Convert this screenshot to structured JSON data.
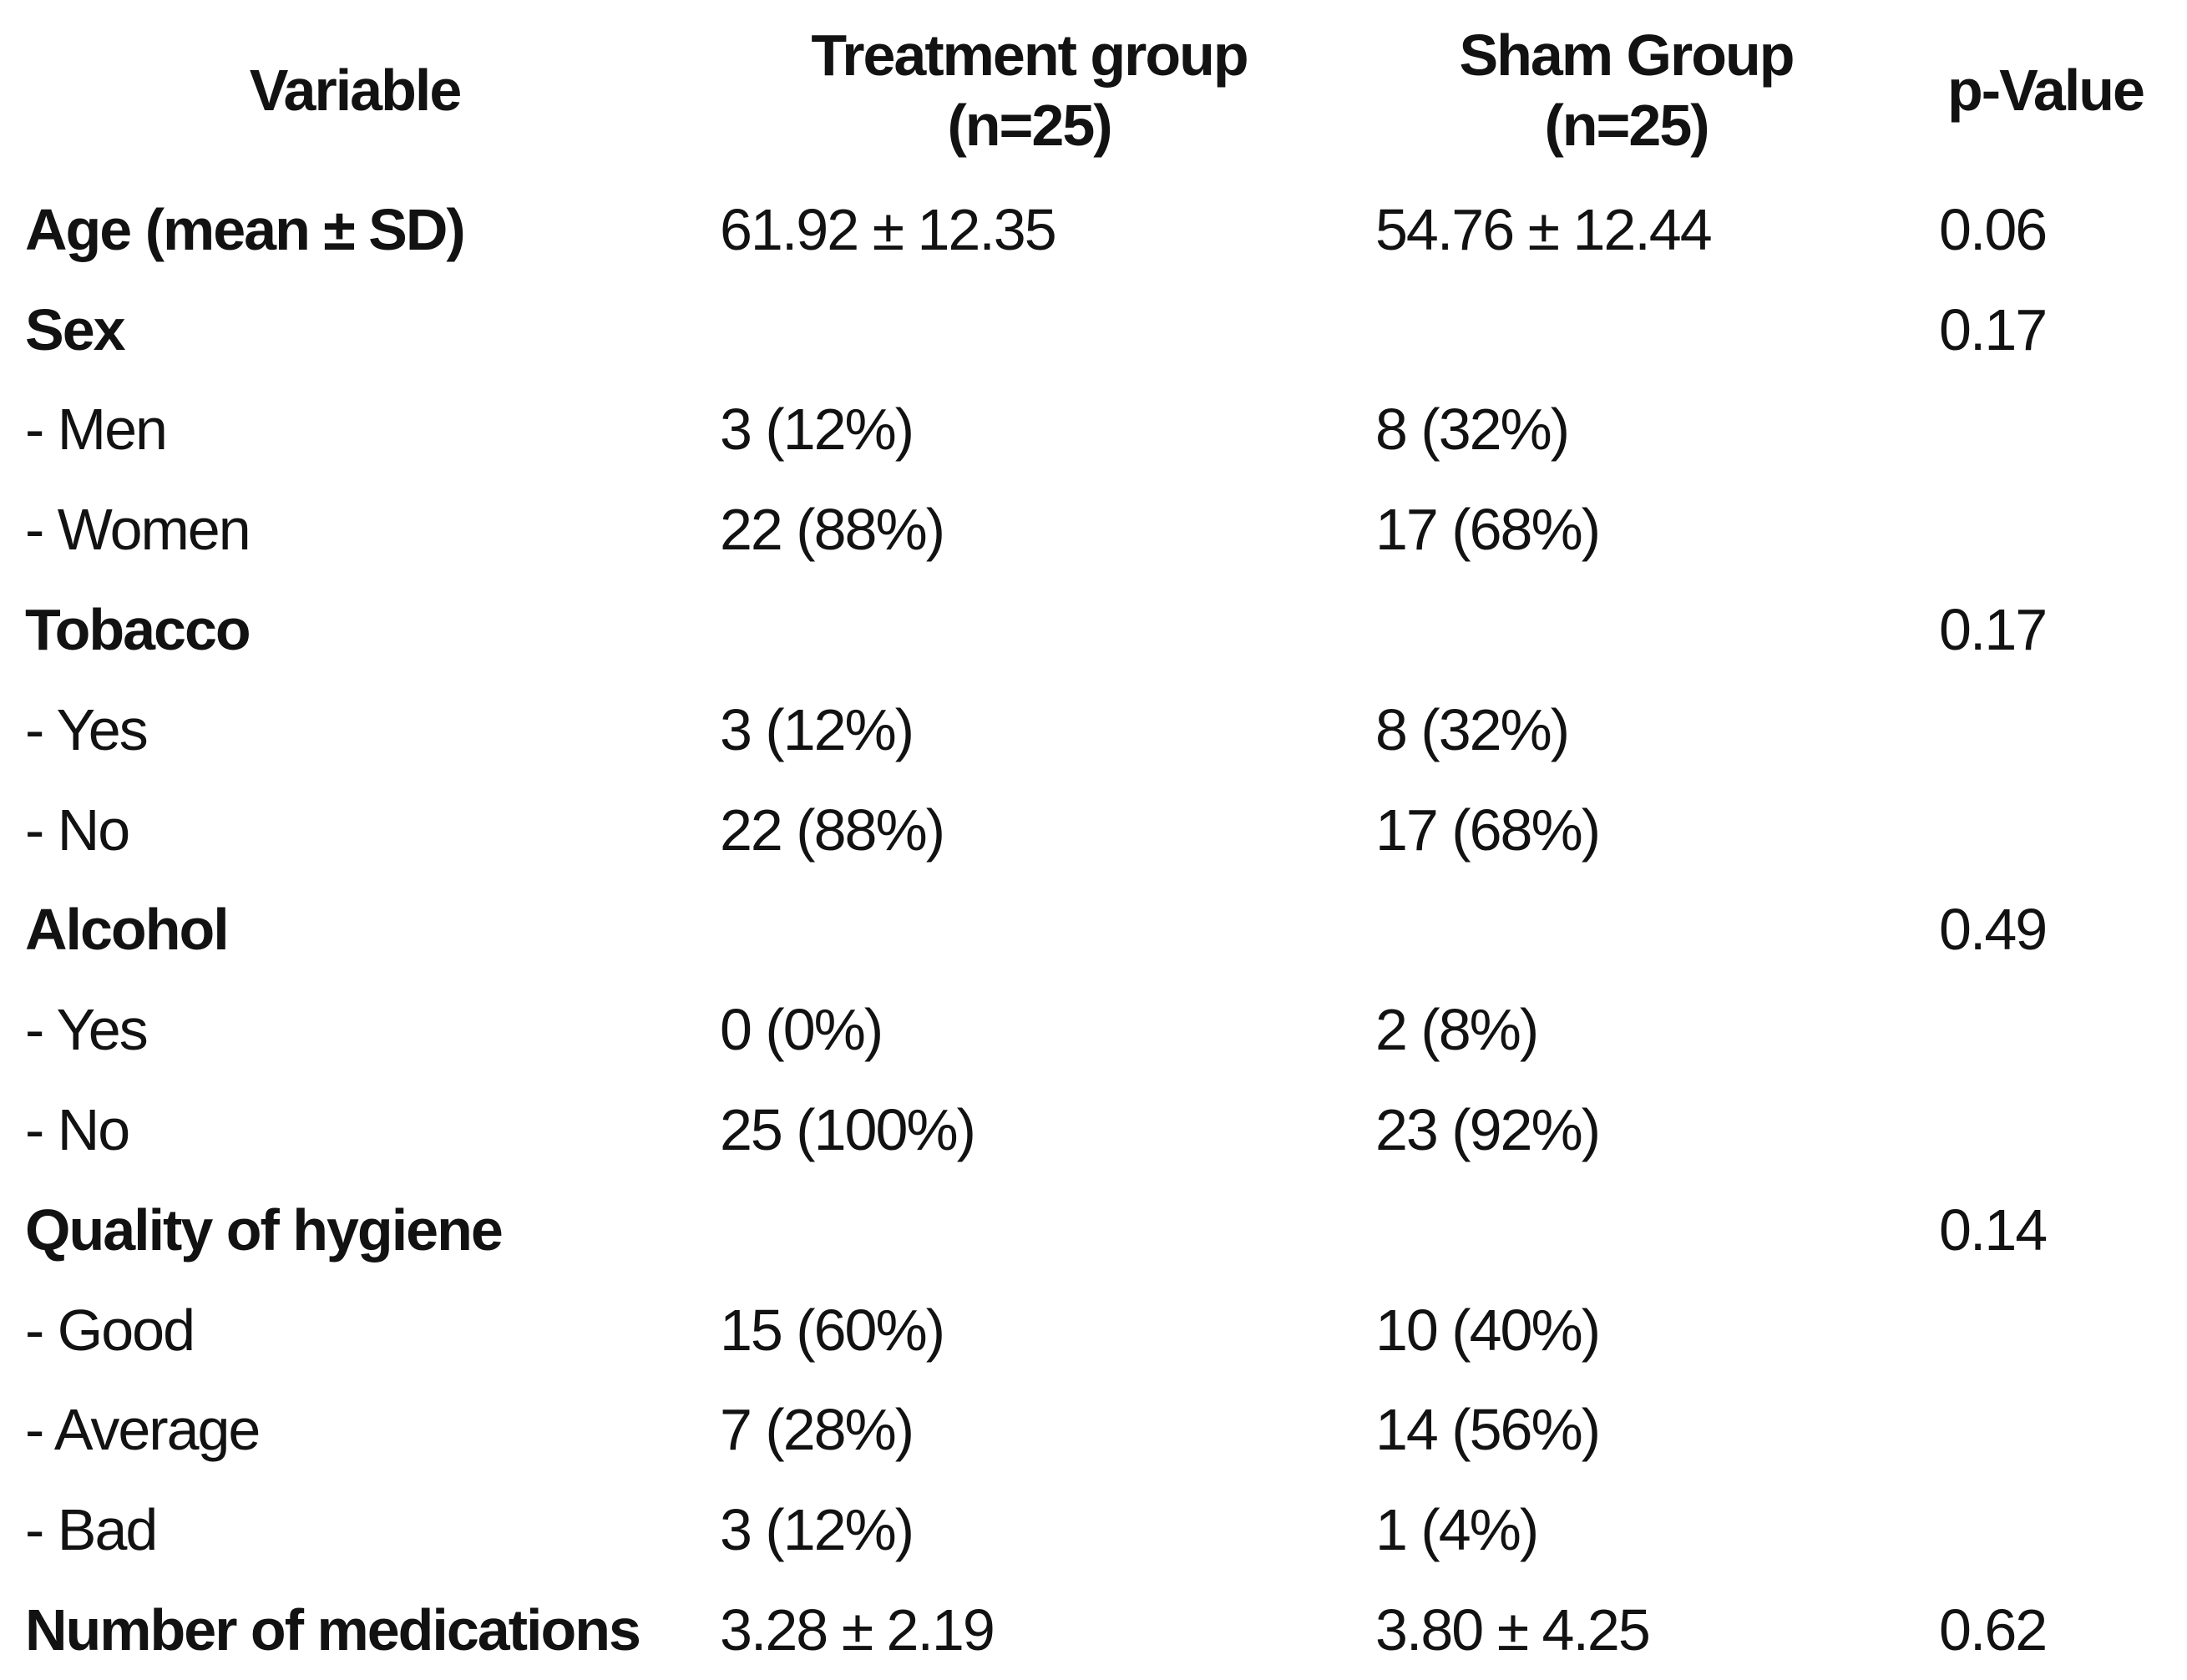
{
  "table": {
    "columns": [
      {
        "label": "Variable",
        "sublabel": ""
      },
      {
        "label": "Treatment group",
        "sublabel": "(n=25)"
      },
      {
        "label": "Sham Group",
        "sublabel": "(n=25)"
      },
      {
        "label": "p-Value",
        "sublabel": ""
      }
    ],
    "rows": [
      {
        "variable": "Age (mean ± SD)",
        "bold": true,
        "treatment": "61.92 ± 12.35",
        "sham": "54.76 ± 12.44",
        "p": "0.06"
      },
      {
        "variable": "Sex",
        "bold": true,
        "treatment": "",
        "sham": "",
        "p": "0.17"
      },
      {
        "variable": "- Men",
        "bold": false,
        "treatment": "3 (12%)",
        "sham": "8 (32%)",
        "p": ""
      },
      {
        "variable": "- Women",
        "bold": false,
        "treatment": "22 (88%)",
        "sham": "17 (68%)",
        "p": ""
      },
      {
        "variable": "Tobacco",
        "bold": true,
        "treatment": "",
        "sham": "",
        "p": "0.17"
      },
      {
        "variable": "- Yes",
        "bold": false,
        "treatment": "3 (12%)",
        "sham": "8 (32%)",
        "p": ""
      },
      {
        "variable": "- No",
        "bold": false,
        "treatment": "22 (88%)",
        "sham": "17 (68%)",
        "p": ""
      },
      {
        "variable": "Alcohol",
        "bold": true,
        "treatment": "",
        "sham": "",
        "p": "0.49"
      },
      {
        "variable": "- Yes",
        "bold": false,
        "treatment": "0 (0%)",
        "sham": "2 (8%)",
        "p": ""
      },
      {
        "variable": "- No",
        "bold": false,
        "treatment": "25 (100%)",
        "sham": "23 (92%)",
        "p": ""
      },
      {
        "variable": "Quality of hygiene",
        "bold": true,
        "treatment": "",
        "sham": "",
        "p": "0.14"
      },
      {
        "variable": "- Good",
        "bold": false,
        "treatment": "15 (60%)",
        "sham": "10 (40%)",
        "p": ""
      },
      {
        "variable": "- Average",
        "bold": false,
        "treatment": "7 (28%)",
        "sham": "14 (56%)",
        "p": ""
      },
      {
        "variable": "- Bad",
        "bold": false,
        "treatment": "3 (12%)",
        "sham": "1 (4%)",
        "p": ""
      },
      {
        "variable": "Number of medications",
        "bold": true,
        "treatment": "3.28 ± 2.19",
        "sham": "3.80 ± 4.25",
        "p": "0.62"
      }
    ]
  }
}
